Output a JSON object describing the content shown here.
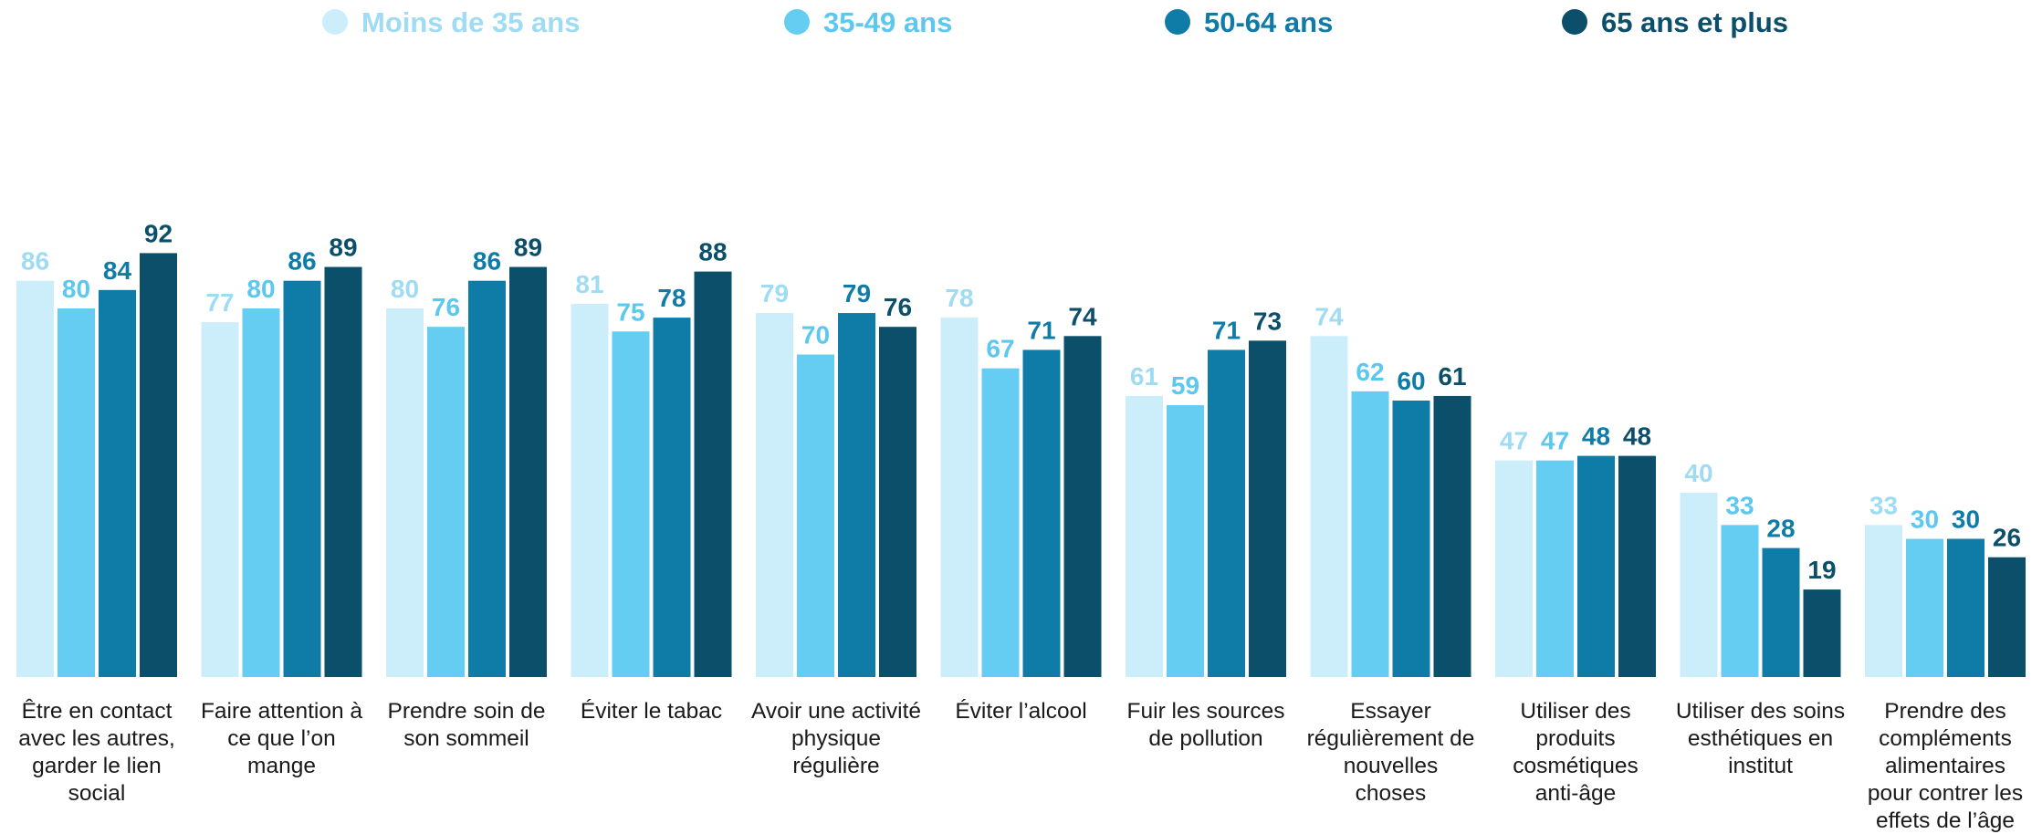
{
  "chart_data": {
    "type": "bar",
    "title": "",
    "xlabel": "",
    "ylabel": "",
    "ylim": [
      0,
      100
    ],
    "grid": false,
    "legend_position": "top",
    "categories": [
      "Être en contact avec les autres, garder le lien social",
      "Faire attention à ce que l’on mange",
      "Prendre soin de son sommeil",
      "Éviter le tabac",
      "Avoir une activité physique régulière",
      "Éviter l’alcool",
      "Fuir les sources de pollution",
      "Essayer régulièrement de nouvelles choses",
      "Utiliser des produits cosmétiques anti-âge",
      "Utiliser des soins esthétiques en institut",
      "Prendre des compléments alimentaires pour contrer les effets de l’âge"
    ],
    "category_lines": [
      [
        "Être en contact",
        "avec les autres,",
        "garder le lien",
        "social"
      ],
      [
        "Faire attention à",
        "ce que l’on",
        "mange"
      ],
      [
        "Prendre soin de",
        "son sommeil"
      ],
      [
        "Éviter le tabac"
      ],
      [
        "Avoir une activité",
        "physique",
        "régulière"
      ],
      [
        "Éviter l’alcool"
      ],
      [
        "Fuir les sources",
        "de pollution"
      ],
      [
        "Essayer",
        "régulièrement de",
        "nouvelles",
        "choses"
      ],
      [
        "Utiliser des",
        "produits",
        "cosmétiques",
        "anti-âge"
      ],
      [
        "Utiliser des soins",
        "esthétiques en",
        "institut"
      ],
      [
        "Prendre des",
        "compléments",
        "alimentaires",
        "pour contrer les",
        "effets de l’âge"
      ]
    ],
    "series": [
      {
        "name": "Moins de 35 ans",
        "color": "#cbeefa",
        "label_color": "#9fdcf3",
        "values": [
          86,
          77,
          80,
          81,
          79,
          78,
          61,
          74,
          47,
          40,
          33
        ]
      },
      {
        "name": "35-49 ans",
        "color": "#66cdf2",
        "label_color": "#5cc8ef",
        "values": [
          80,
          80,
          76,
          75,
          70,
          67,
          59,
          62,
          47,
          33,
          30
        ]
      },
      {
        "name": "50-64 ans",
        "color": "#0f7ca8",
        "label_color": "#0f7ca8",
        "values": [
          84,
          86,
          86,
          78,
          79,
          71,
          71,
          60,
          48,
          28,
          30
        ]
      },
      {
        "name": "65 ans et plus",
        "color": "#0b4f6b",
        "label_color": "#0b4f6b",
        "values": [
          92,
          89,
          89,
          88,
          76,
          74,
          73,
          61,
          48,
          19,
          26
        ]
      }
    ]
  }
}
